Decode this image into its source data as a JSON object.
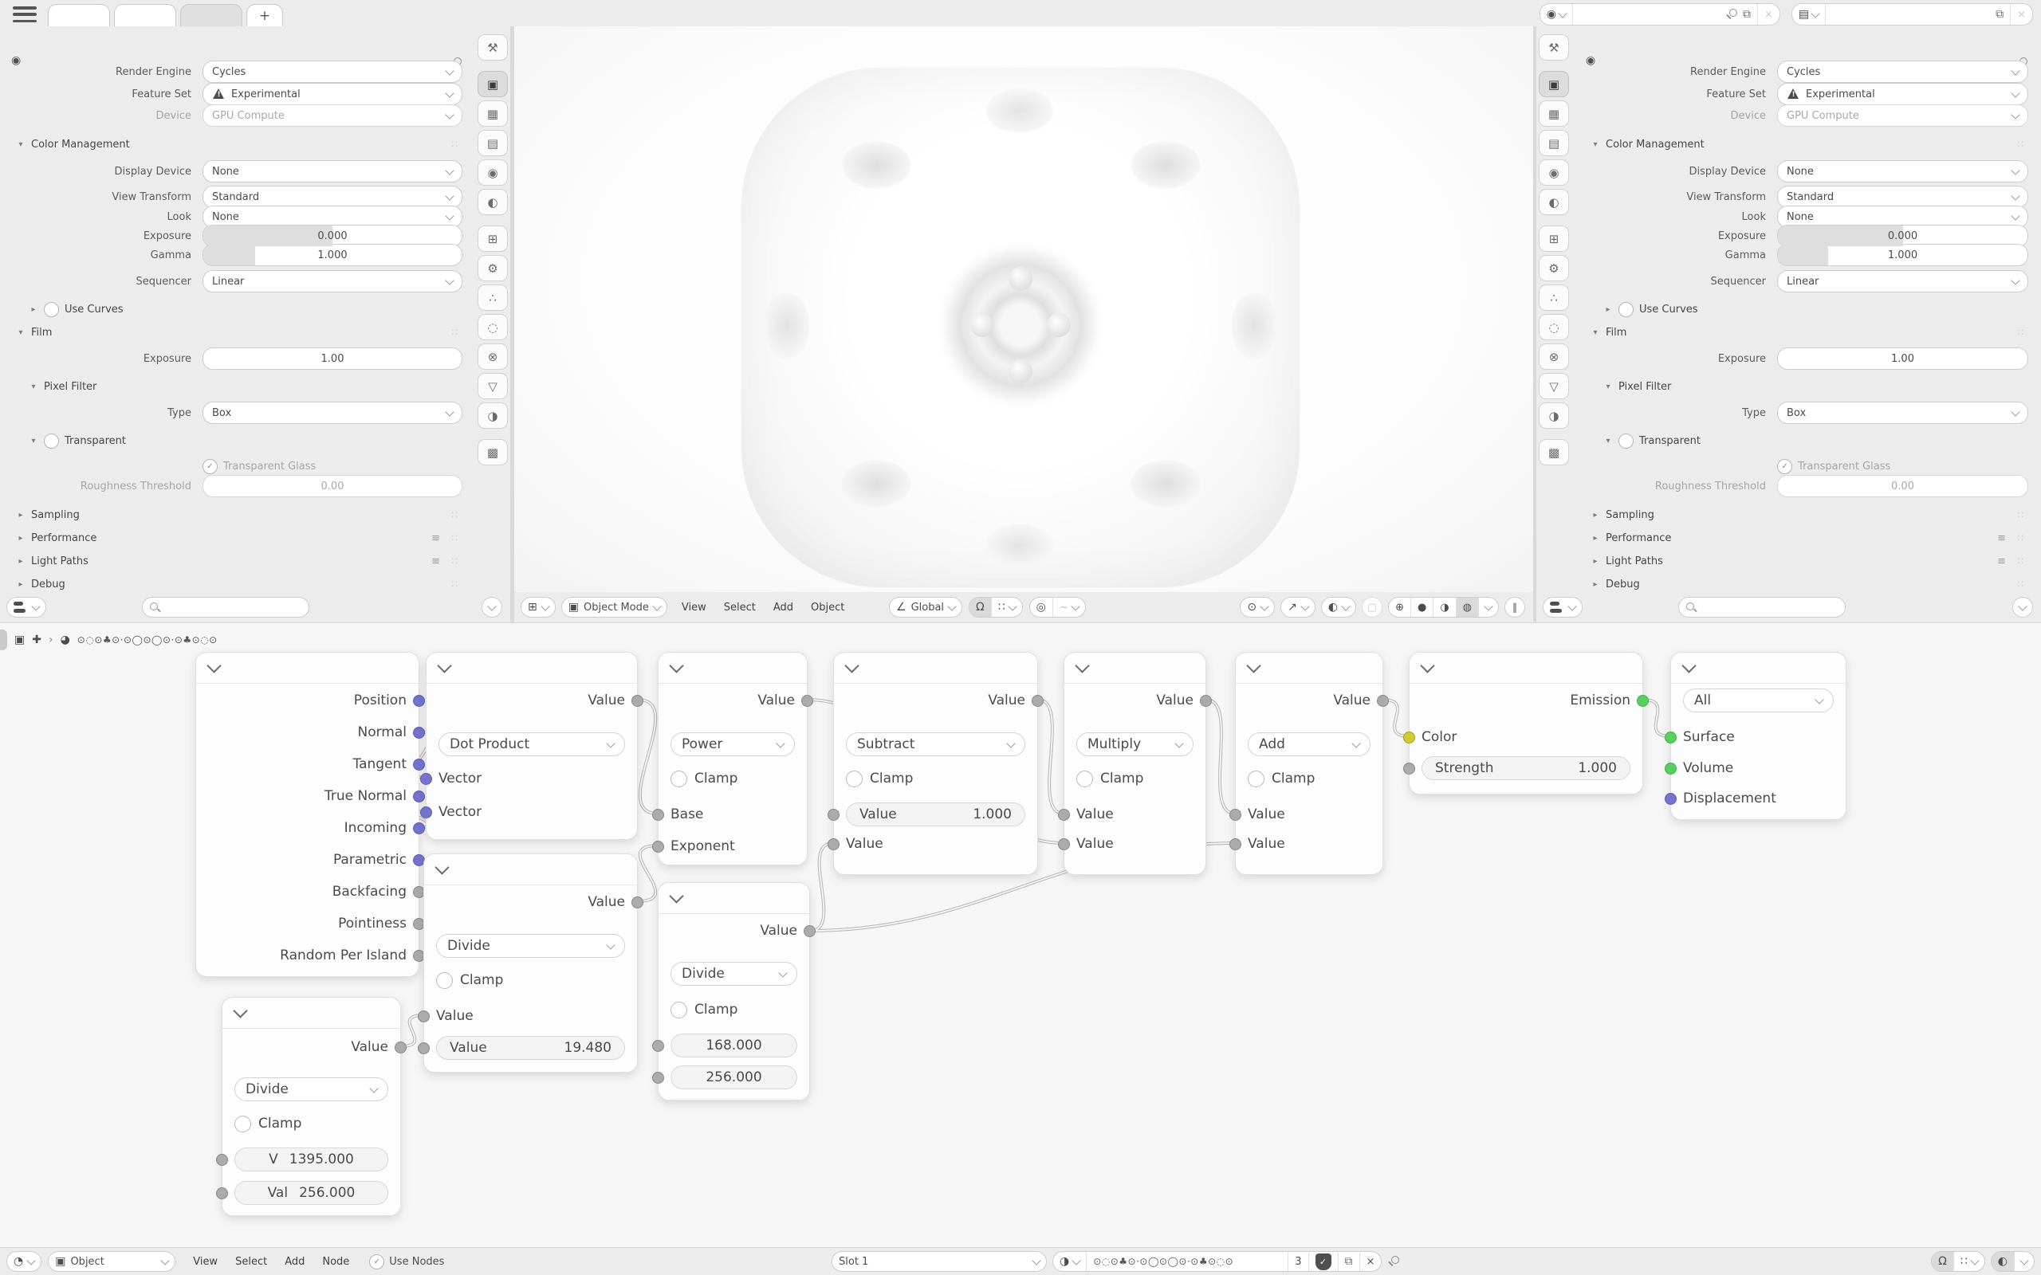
{
  "topbar": {
    "new_tab_label": "+",
    "scene_name": "",
    "view_layer_name": ""
  },
  "properties": {
    "labels": {
      "render_engine": "Render Engine",
      "feature_set": "Feature Set",
      "device": "Device",
      "display_device": "Display Device",
      "view_transform": "View Transform",
      "look": "Look",
      "exposure": "Exposure",
      "gamma": "Gamma",
      "sequencer": "Sequencer",
      "film_exposure": "Exposure",
      "pixel_type": "Type",
      "roughness_threshold": "Roughness Threshold"
    },
    "values": {
      "render_engine": "Cycles",
      "feature_set": "Experimental",
      "device": "GPU Compute",
      "display_device": "None",
      "view_transform": "Standard",
      "look": "None",
      "exposure": "0.000",
      "gamma": "1.000",
      "sequencer": "Linear",
      "film_exposure": "1.00",
      "pixel_type": "Box",
      "transparent_glass": "Transparent Glass",
      "roughness_threshold": "0.00"
    },
    "sections": {
      "color_management": "Color Management",
      "use_curves": "Use Curves",
      "film": "Film",
      "pixel_filter": "Pixel Filter",
      "transparent": "Transparent",
      "sampling": "Sampling",
      "performance": "Performance",
      "light_paths": "Light Paths",
      "debug": "Debug"
    }
  },
  "viewport": {
    "header": {
      "mode": "Object Mode",
      "menus": [
        "View",
        "Select",
        "Add",
        "Object"
      ],
      "orientation": "Global"
    }
  },
  "node_editor": {
    "breadcrumb": {
      "path_name": "⊙◌⊙♣⊙·⊙◯⊙◯⊙·⊙♣⊙◌⊙"
    },
    "header": {
      "id_type": "Object",
      "menus": [
        "View",
        "Select",
        "Add",
        "Node"
      ],
      "use_nodes": "Use Nodes",
      "slot": "Slot 1",
      "material_name": "⊙◌⊙♣⊙·⊙◯⊙◯⊙·⊙♣⊙◌⊙",
      "users": "3"
    },
    "nodes": {
      "geometry": {
        "outputs": [
          "Position",
          "Normal",
          "Tangent",
          "True Normal",
          "Incoming",
          "Parametric",
          "Backfacing",
          "Pointiness",
          "Random Per Island"
        ]
      },
      "dot_product": {
        "output": "Value",
        "operation": "Dot Product",
        "inputs": [
          "Vector",
          "Vector"
        ]
      },
      "power": {
        "output": "Value",
        "operation": "Power",
        "clamp": "Clamp",
        "inputs": [
          "Base",
          "Exponent"
        ]
      },
      "subtract": {
        "output": "Value",
        "operation": "Subtract",
        "clamp": "Clamp",
        "field_label": "Value",
        "field_value": "1.000",
        "input": "Value"
      },
      "multiply": {
        "output": "Value",
        "operation": "Multiply",
        "clamp": "Clamp",
        "inputs": [
          "Value",
          "Value"
        ]
      },
      "add": {
        "output": "Value",
        "operation": "Add",
        "clamp": "Clamp",
        "inputs": [
          "Value",
          "Value"
        ]
      },
      "emission": {
        "output": "Emission",
        "color_input": "Color",
        "strength_label": "Strength",
        "strength_value": "1.000"
      },
      "material_output": {
        "target": "All",
        "inputs": [
          "Surface",
          "Volume",
          "Displacement"
        ]
      },
      "divide_a": {
        "output": "Value",
        "operation": "Divide",
        "clamp": "Clamp",
        "field1_label": "V",
        "field1_value": "1395.000",
        "field2_label": "Val",
        "field2_value": "256.000"
      },
      "divide_b": {
        "output": "Value",
        "operation": "Divide",
        "clamp": "Clamp",
        "input": "Value",
        "field_label": "Value",
        "field_value": "19.480"
      },
      "divide_c": {
        "output": "Value",
        "operation": "Divide",
        "clamp": "Clamp",
        "field1_value": "168.000",
        "field2_value": "256.000"
      }
    },
    "socket_colors": {
      "vector": "#7474ce",
      "value": "#ababab",
      "color": "#cdca33",
      "shader": "#58cf5e"
    }
  }
}
